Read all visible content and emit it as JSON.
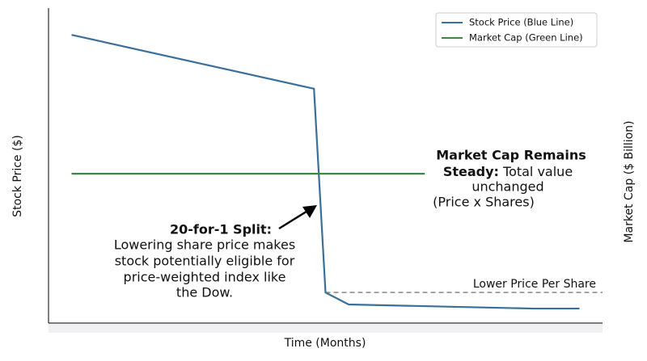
{
  "chart_data": {
    "type": "line",
    "xlabel": "Time (Months)",
    "ylabel": "Stock Price ($)",
    "y2label": "Market Cap ($ Billion)",
    "xlim": [
      0,
      24
    ],
    "ylim": [
      0,
      100
    ],
    "y2lim": [
      0,
      100
    ],
    "legend": "upper right",
    "series": [
      {
        "name": "Stock Price (Blue Line)",
        "color": "#3a6f9a",
        "x": [
          1,
          11.5,
          12,
          13,
          21,
          23
        ],
        "values": [
          91.5,
          74.4,
          9.7,
          5.9,
          4.6,
          4.6
        ]
      },
      {
        "name": "Market Cap (Green Line)",
        "color": "#3b8a3b",
        "axis": "y2",
        "x": [
          1,
          16.3
        ],
        "values": [
          47.4,
          47.4
        ]
      }
    ],
    "reference_line": {
      "y": 9.7,
      "x": 12,
      "color": "#888888",
      "label": "Lower Price Per Share"
    },
    "annotations": [
      {
        "bold": "20-for-1 Split:",
        "lines": [
          "Lowering share price makes",
          "stock potentially eligible for",
          "price-weighted index like",
          "the Dow."
        ]
      },
      {
        "bold": "Market Cap Remains",
        "bold2": "Steady:",
        "rest": " Total value",
        "lines": [
          "unchanged",
          "(Price x Shares)"
        ]
      }
    ]
  }
}
